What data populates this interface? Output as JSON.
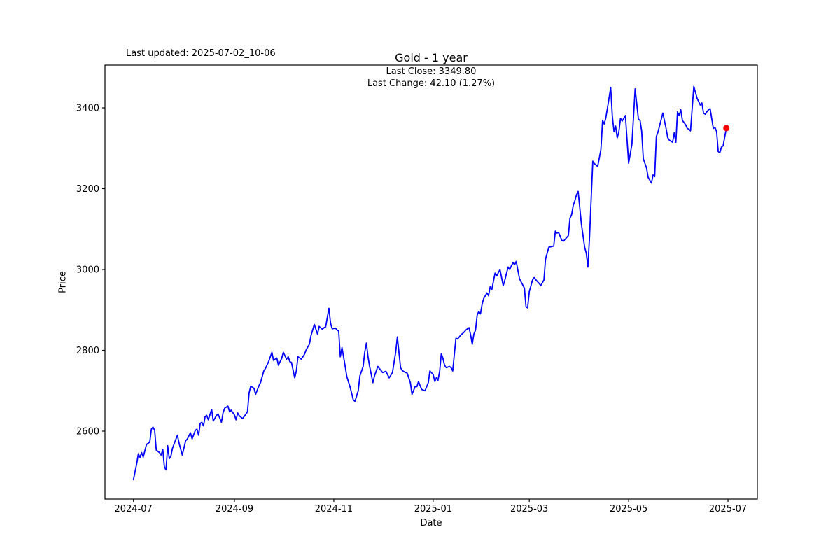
{
  "figure": {
    "last_updated_text": "Last updated: 2025-07-02_10-06",
    "title": "Gold - 1 year",
    "annotation_line1": "Last Close: 3349.80",
    "annotation_line2": "Last Change: 42.10 (1.27%)",
    "xlabel": "Date",
    "ylabel": "Price"
  },
  "chart_data": {
    "type": "line",
    "title": "Gold - 1 year",
    "xlabel": "Date",
    "ylabel": "Price",
    "grid": false,
    "legend": null,
    "line_color": "#0000ff",
    "marker_color": "#ff0000",
    "background_color": "#ffffff",
    "last_close": 3349.8,
    "last_change": "42.10 (1.27%)",
    "x_unit": "days since 2024-07-01",
    "x_start_date": "2024-07-01",
    "x_ticks": [
      {
        "label": "2024-07",
        "day": 0
      },
      {
        "label": "2024-09",
        "day": 62
      },
      {
        "label": "2024-11",
        "day": 123
      },
      {
        "label": "2025-01",
        "day": 184
      },
      {
        "label": "2025-03",
        "day": 243
      },
      {
        "label": "2025-05",
        "day": 304
      },
      {
        "label": "2025-07",
        "day": 365
      }
    ],
    "y_ticks": [
      2600,
      2800,
      3000,
      3200,
      3400
    ],
    "y_axis_range": [
      2432,
      3506
    ],
    "x_axis_range_days": [
      -17.5,
      383
    ],
    "points": [
      [
        0,
        2480
      ],
      [
        2,
        2520
      ],
      [
        3,
        2544
      ],
      [
        4,
        2535
      ],
      [
        5,
        2547
      ],
      [
        6,
        2536
      ],
      [
        8,
        2567
      ],
      [
        10,
        2573
      ],
      [
        11,
        2605
      ],
      [
        12,
        2610
      ],
      [
        13,
        2602
      ],
      [
        14,
        2553
      ],
      [
        16,
        2547
      ],
      [
        17,
        2541
      ],
      [
        18,
        2555
      ],
      [
        19,
        2512
      ],
      [
        20,
        2504
      ],
      [
        21,
        2564
      ],
      [
        22,
        2532
      ],
      [
        23,
        2538
      ],
      [
        24,
        2558
      ],
      [
        27,
        2590
      ],
      [
        28,
        2570
      ],
      [
        30,
        2541
      ],
      [
        32,
        2576
      ],
      [
        33,
        2580
      ],
      [
        35,
        2596
      ],
      [
        36,
        2581
      ],
      [
        38,
        2602
      ],
      [
        39,
        2605
      ],
      [
        40,
        2590
      ],
      [
        41,
        2619
      ],
      [
        42,
        2622
      ],
      [
        43,
        2613
      ],
      [
        44,
        2636
      ],
      [
        45,
        2639
      ],
      [
        46,
        2628
      ],
      [
        48,
        2654
      ],
      [
        49,
        2625
      ],
      [
        51,
        2639
      ],
      [
        52,
        2642
      ],
      [
        54,
        2622
      ],
      [
        55,
        2645
      ],
      [
        56,
        2657
      ],
      [
        58,
        2662
      ],
      [
        59,
        2648
      ],
      [
        60,
        2652
      ],
      [
        62,
        2640
      ],
      [
        63,
        2628
      ],
      [
        64,
        2645
      ],
      [
        65,
        2638
      ],
      [
        67,
        2631
      ],
      [
        69,
        2642
      ],
      [
        70,
        2648
      ],
      [
        71,
        2694
      ],
      [
        72,
        2711
      ],
      [
        74,
        2706
      ],
      [
        75,
        2691
      ],
      [
        77,
        2712
      ],
      [
        78,
        2720
      ],
      [
        80,
        2749
      ],
      [
        81,
        2755
      ],
      [
        83,
        2772
      ],
      [
        85,
        2795
      ],
      [
        86,
        2775
      ],
      [
        88,
        2781
      ],
      [
        89,
        2763
      ],
      [
        91,
        2780
      ],
      [
        92,
        2795
      ],
      [
        94,
        2778
      ],
      [
        95,
        2784
      ],
      [
        96,
        2772
      ],
      [
        97,
        2770
      ],
      [
        99,
        2732
      ],
      [
        100,
        2749
      ],
      [
        101,
        2784
      ],
      [
        103,
        2778
      ],
      [
        105,
        2790
      ],
      [
        106,
        2801
      ],
      [
        108,
        2815
      ],
      [
        109,
        2836
      ],
      [
        110,
        2850
      ],
      [
        111,
        2864
      ],
      [
        113,
        2840
      ],
      [
        114,
        2859
      ],
      [
        116,
        2852
      ],
      [
        117,
        2856
      ],
      [
        118,
        2858
      ],
      [
        120,
        2904
      ],
      [
        121,
        2867
      ],
      [
        122,
        2853
      ],
      [
        124,
        2855
      ],
      [
        125,
        2850
      ],
      [
        126,
        2848
      ],
      [
        127,
        2784
      ],
      [
        128,
        2807
      ],
      [
        130,
        2760
      ],
      [
        131,
        2735
      ],
      [
        133,
        2709
      ],
      [
        135,
        2677
      ],
      [
        136,
        2674
      ],
      [
        138,
        2700
      ],
      [
        139,
        2737
      ],
      [
        141,
        2760
      ],
      [
        142,
        2795
      ],
      [
        143,
        2818
      ],
      [
        144,
        2784
      ],
      [
        145,
        2760
      ],
      [
        147,
        2720
      ],
      [
        148,
        2737
      ],
      [
        150,
        2760
      ],
      [
        151,
        2755
      ],
      [
        153,
        2745
      ],
      [
        155,
        2748
      ],
      [
        156,
        2740
      ],
      [
        157,
        2732
      ],
      [
        159,
        2745
      ],
      [
        161,
        2795
      ],
      [
        162,
        2833
      ],
      [
        164,
        2757
      ],
      [
        165,
        2750
      ],
      [
        167,
        2745
      ],
      [
        168,
        2744
      ],
      [
        170,
        2720
      ],
      [
        171,
        2691
      ],
      [
        173,
        2711
      ],
      [
        174,
        2710
      ],
      [
        175,
        2723
      ],
      [
        176,
        2712
      ],
      [
        177,
        2703
      ],
      [
        179,
        2700
      ],
      [
        181,
        2720
      ],
      [
        182,
        2749
      ],
      [
        184,
        2740
      ],
      [
        185,
        2723
      ],
      [
        186,
        2732
      ],
      [
        187,
        2726
      ],
      [
        188,
        2749
      ],
      [
        189,
        2792
      ],
      [
        190,
        2780
      ],
      [
        191,
        2763
      ],
      [
        192,
        2757
      ],
      [
        194,
        2760
      ],
      [
        195,
        2757
      ],
      [
        196,
        2749
      ],
      [
        197,
        2790
      ],
      [
        198,
        2830
      ],
      [
        199,
        2828
      ],
      [
        201,
        2838
      ],
      [
        203,
        2845
      ],
      [
        204,
        2850
      ],
      [
        206,
        2856
      ],
      [
        207,
        2838
      ],
      [
        208,
        2815
      ],
      [
        209,
        2840
      ],
      [
        210,
        2850
      ],
      [
        211,
        2887
      ],
      [
        212,
        2896
      ],
      [
        213,
        2890
      ],
      [
        214,
        2913
      ],
      [
        215,
        2928
      ],
      [
        217,
        2942
      ],
      [
        218,
        2935
      ],
      [
        219,
        2957
      ],
      [
        220,
        2950
      ],
      [
        221,
        2971
      ],
      [
        222,
        2991
      ],
      [
        223,
        2984
      ],
      [
        225,
        3000
      ],
      [
        227,
        2960
      ],
      [
        228,
        2974
      ],
      [
        230,
        3006
      ],
      [
        231,
        3000
      ],
      [
        232,
        3009
      ],
      [
        233,
        3017
      ],
      [
        234,
        3012
      ],
      [
        235,
        3020
      ],
      [
        237,
        2977
      ],
      [
        240,
        2954
      ],
      [
        241,
        2908
      ],
      [
        242,
        2905
      ],
      [
        243,
        2945
      ],
      [
        245,
        2974
      ],
      [
        246,
        2980
      ],
      [
        248,
        2970
      ],
      [
        249,
        2966
      ],
      [
        250,
        2960
      ],
      [
        252,
        2974
      ],
      [
        253,
        3026
      ],
      [
        255,
        3055
      ],
      [
        258,
        3058
      ],
      [
        259,
        3095
      ],
      [
        260,
        3090
      ],
      [
        261,
        3092
      ],
      [
        263,
        3072
      ],
      [
        264,
        3070
      ],
      [
        265,
        3075
      ],
      [
        267,
        3084
      ],
      [
        268,
        3127
      ],
      [
        269,
        3136
      ],
      [
        270,
        3159
      ],
      [
        271,
        3170
      ],
      [
        272,
        3185
      ],
      [
        273,
        3193
      ],
      [
        275,
        3113
      ],
      [
        277,
        3055
      ],
      [
        278,
        3040
      ],
      [
        279,
        3006
      ],
      [
        280,
        3082
      ],
      [
        281,
        3176
      ],
      [
        282,
        3268
      ],
      [
        283,
        3262
      ],
      [
        285,
        3255
      ],
      [
        287,
        3297
      ],
      [
        288,
        3369
      ],
      [
        289,
        3360
      ],
      [
        290,
        3375
      ],
      [
        291,
        3400
      ],
      [
        293,
        3450
      ],
      [
        294,
        3380
      ],
      [
        295,
        3341
      ],
      [
        296,
        3355
      ],
      [
        297,
        3326
      ],
      [
        298,
        3340
      ],
      [
        299,
        3374
      ],
      [
        300,
        3367
      ],
      [
        302,
        3381
      ],
      [
        304,
        3263
      ],
      [
        306,
        3310
      ],
      [
        308,
        3447
      ],
      [
        310,
        3372
      ],
      [
        311,
        3369
      ],
      [
        312,
        3343
      ],
      [
        313,
        3274
      ],
      [
        315,
        3251
      ],
      [
        316,
        3228
      ],
      [
        318,
        3214
      ],
      [
        319,
        3234
      ],
      [
        320,
        3230
      ],
      [
        321,
        3329
      ],
      [
        322,
        3340
      ],
      [
        325,
        3387
      ],
      [
        327,
        3349
      ],
      [
        328,
        3326
      ],
      [
        329,
        3320
      ],
      [
        331,
        3315
      ],
      [
        332,
        3338
      ],
      [
        333,
        3315
      ],
      [
        334,
        3390
      ],
      [
        335,
        3381
      ],
      [
        336,
        3395
      ],
      [
        337,
        3369
      ],
      [
        339,
        3358
      ],
      [
        340,
        3349
      ],
      [
        341,
        3347
      ],
      [
        342,
        3343
      ],
      [
        344,
        3453
      ],
      [
        346,
        3424
      ],
      [
        348,
        3407
      ],
      [
        349,
        3412
      ],
      [
        350,
        3387
      ],
      [
        351,
        3384
      ],
      [
        352,
        3390
      ],
      [
        353,
        3395
      ],
      [
        354,
        3398
      ],
      [
        356,
        3349
      ],
      [
        357,
        3352
      ],
      [
        358,
        3341
      ],
      [
        359,
        3292
      ],
      [
        360,
        3289
      ],
      [
        361,
        3303
      ],
      [
        362,
        3306
      ],
      [
        364,
        3349.8
      ]
    ]
  }
}
